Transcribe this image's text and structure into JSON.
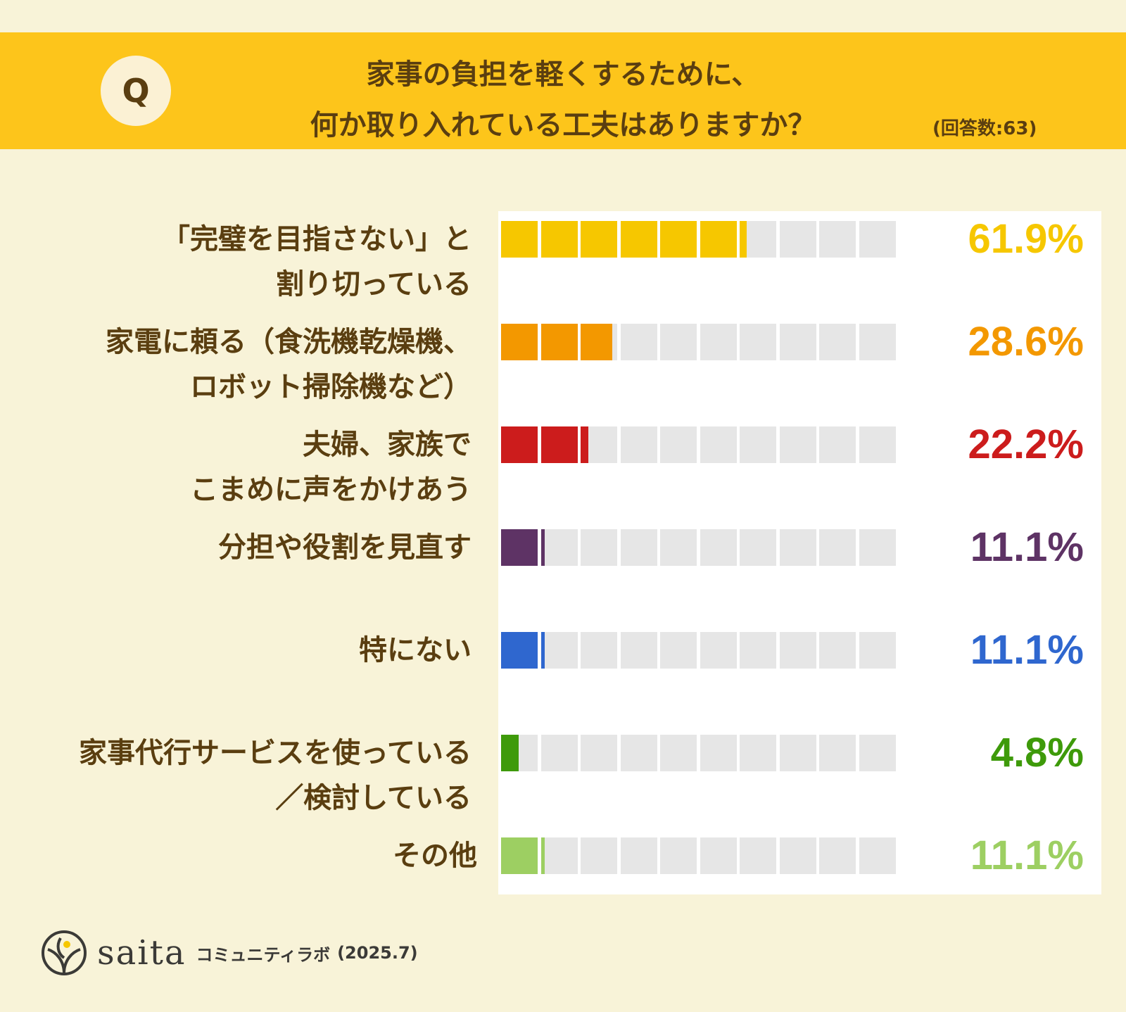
{
  "header": {
    "badge": "Q",
    "title_line1": "家事の負担を軽くするために、",
    "title_line2": "何か取り入れている工夫はありますか？",
    "answers": "(回答数:63)"
  },
  "chart_data": {
    "type": "bar",
    "categories": [
      [
        "「完璧を目指さない」と",
        "割り切っている"
      ],
      [
        "家電に頼る（食洗機乾燥機、",
        "ロボット掃除機など）"
      ],
      [
        "夫婦、家族で",
        "こまめに声をかけあう"
      ],
      [
        "分担や役割を見直す"
      ],
      [
        "特にない"
      ],
      [
        "家事代行サービスを使っている",
        "／検討している"
      ],
      [
        "その他"
      ]
    ],
    "values": [
      61.9,
      28.6,
      22.2,
      11.1,
      11.1,
      4.8,
      11.1
    ],
    "value_labels": [
      "61.9%",
      "28.6%",
      "22.2%",
      "11.1%",
      "11.1%",
      "4.8%",
      "11.1%"
    ],
    "colors": [
      "#f6c700",
      "#f39800",
      "#cc1c1c",
      "#5e3365",
      "#2f67cf",
      "#3e9a0a",
      "#9dcf62"
    ],
    "segments": 10,
    "xlim": [
      0,
      100
    ]
  },
  "footer": {
    "brand": "saita",
    "subtitle": "コミュニティラボ",
    "date": "(2025.7)"
  }
}
